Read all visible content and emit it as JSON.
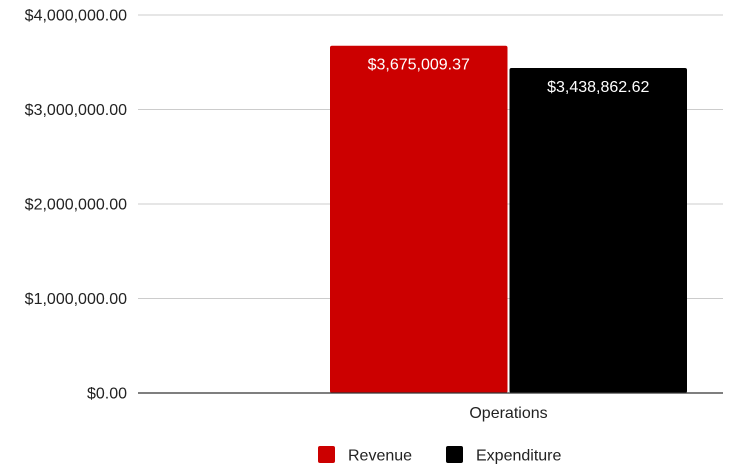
{
  "chart_data": {
    "type": "bar",
    "title": "",
    "xlabel": "",
    "ylabel": "",
    "categories": [
      "Operations"
    ],
    "series": [
      {
        "name": "Revenue",
        "values": [
          3675009.37
        ],
        "color": "#cc0000",
        "value_labels": [
          "$3,675,009.37"
        ]
      },
      {
        "name": "Expenditure",
        "values": [
          3438862.62
        ],
        "color": "#000000",
        "value_labels": [
          "$3,438,862.62"
        ]
      }
    ],
    "ylim": [
      0,
      4000000
    ],
    "yticks": [
      0,
      1000000,
      2000000,
      3000000,
      4000000
    ],
    "ytick_labels": [
      "$0.00",
      "$1,000,000.00",
      "$2,000,000.00",
      "$3,000,000.00",
      "$4,000,000.00"
    ],
    "grid": true,
    "legend": "bottom",
    "data_labels_inside": true
  }
}
